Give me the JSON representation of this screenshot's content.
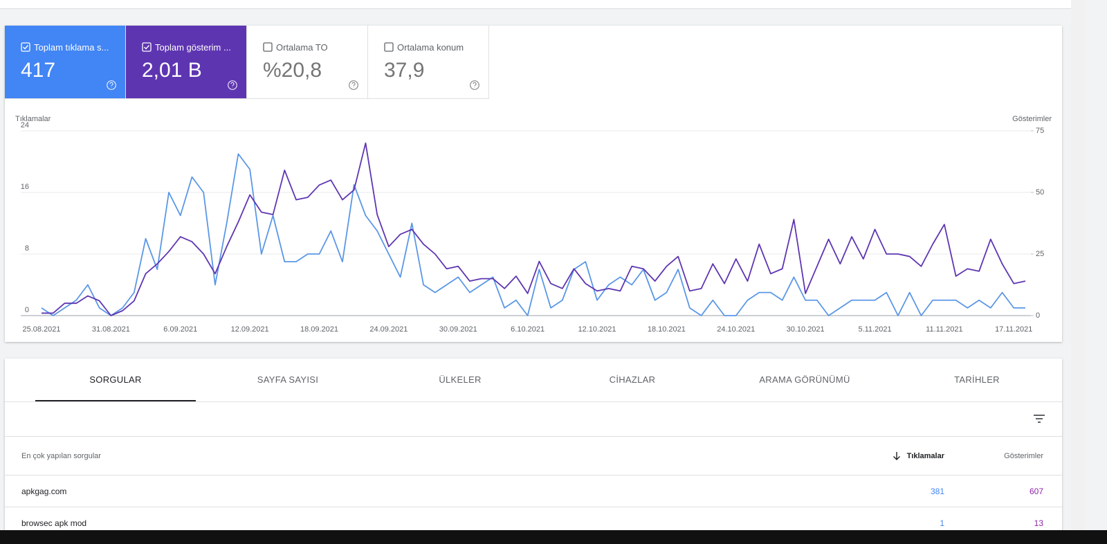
{
  "cards": [
    {
      "label": "Toplam tıklama s...",
      "value": "417",
      "checked": true,
      "color": "#4285f4"
    },
    {
      "label": "Toplam gösterim ...",
      "value": "2,01 B",
      "checked": true,
      "color": "#5e35b1"
    },
    {
      "label": "Ortalama TO",
      "value": "%20,8",
      "checked": false,
      "color": "#ffffff"
    },
    {
      "label": "Ortalama konum",
      "value": "37,9",
      "checked": false,
      "color": "#ffffff"
    }
  ],
  "chart_data": {
    "type": "line",
    "ylabel": "Tıklamalar",
    "y2label": "Gösterimler",
    "categories": [
      "25.08.2021",
      null,
      null,
      null,
      null,
      null,
      "31.08.2021",
      null,
      null,
      null,
      null,
      null,
      "6.09.2021",
      null,
      null,
      null,
      null,
      null,
      "12.09.2021",
      null,
      null,
      null,
      null,
      null,
      "18.09.2021",
      null,
      null,
      null,
      null,
      null,
      "24.09.2021",
      null,
      null,
      null,
      null,
      null,
      "30.09.2021",
      null,
      null,
      null,
      null,
      null,
      "6.10.2021",
      null,
      null,
      null,
      null,
      null,
      "12.10.2021",
      null,
      null,
      null,
      null,
      null,
      "18.10.2021",
      null,
      null,
      null,
      null,
      null,
      "24.10.2021",
      null,
      null,
      null,
      null,
      null,
      "30.10.2021",
      null,
      null,
      null,
      null,
      null,
      "5.11.2021",
      null,
      null,
      null,
      null,
      null,
      "11.11.2021",
      null,
      null,
      null,
      null,
      null,
      "17.11.2021",
      null
    ],
    "ylim": [
      0,
      24
    ],
    "yticks": [
      0,
      8,
      16,
      24
    ],
    "y2lim": [
      0,
      75
    ],
    "y2ticks": [
      0,
      25,
      50,
      75
    ],
    "grid": true,
    "series": [
      {
        "name": "Tıklamalar",
        "color": "#5a97e6",
        "values": [
          1,
          0,
          1,
          2,
          4,
          1,
          0,
          1,
          3,
          10,
          6,
          16,
          13,
          18,
          16,
          4,
          12,
          21,
          19,
          8,
          13,
          7,
          7,
          8,
          8,
          11,
          7,
          17,
          13,
          11,
          8,
          5,
          12,
          4,
          3,
          4,
          5,
          3,
          4,
          5,
          1,
          2,
          0,
          6,
          1,
          2,
          6,
          7,
          2,
          4,
          5,
          4,
          6,
          2,
          3,
          6,
          1,
          0,
          2,
          0,
          0,
          2,
          3,
          3,
          2,
          5,
          2,
          2,
          0,
          1,
          2,
          2,
          2,
          3,
          0,
          3,
          0,
          2,
          2,
          2,
          1,
          2,
          1,
          3,
          1,
          1
        ]
      },
      {
        "name": "Gösterimler",
        "color": "#5e35b1",
        "axis": "y2",
        "values": [
          1,
          1,
          5,
          5,
          8,
          6,
          0,
          2,
          6,
          17,
          21,
          26,
          32,
          30,
          25,
          17,
          28,
          38,
          49,
          42,
          41,
          59,
          47,
          48,
          53,
          55,
          47,
          51,
          70,
          41,
          28,
          33,
          35,
          29,
          25,
          19,
          20,
          14,
          15,
          15,
          11,
          16,
          9,
          22,
          13,
          11,
          19,
          13,
          10,
          11,
          10,
          20,
          19,
          14,
          20,
          24,
          10,
          11,
          21,
          13,
          23,
          14,
          29,
          17,
          19,
          39,
          9,
          20,
          31,
          21,
          32,
          23,
          35,
          25,
          25,
          24,
          20,
          29,
          37,
          16,
          19,
          18,
          31,
          21,
          13,
          14
        ]
      }
    ]
  },
  "tabs": [
    "SORGULAR",
    "SAYFA SAYISI",
    "ÜLKELER",
    "CİHAZLAR",
    "ARAMA GÖRÜNÜMÜ",
    "TARİHLER"
  ],
  "active_tab": 0,
  "table": {
    "header": [
      "En çok yapılan sorgular",
      "Tıklamalar",
      "Gösterimler"
    ],
    "rows": [
      [
        "apkgag.com",
        381,
        607
      ],
      [
        "browsec apk mod",
        1,
        13
      ]
    ]
  }
}
